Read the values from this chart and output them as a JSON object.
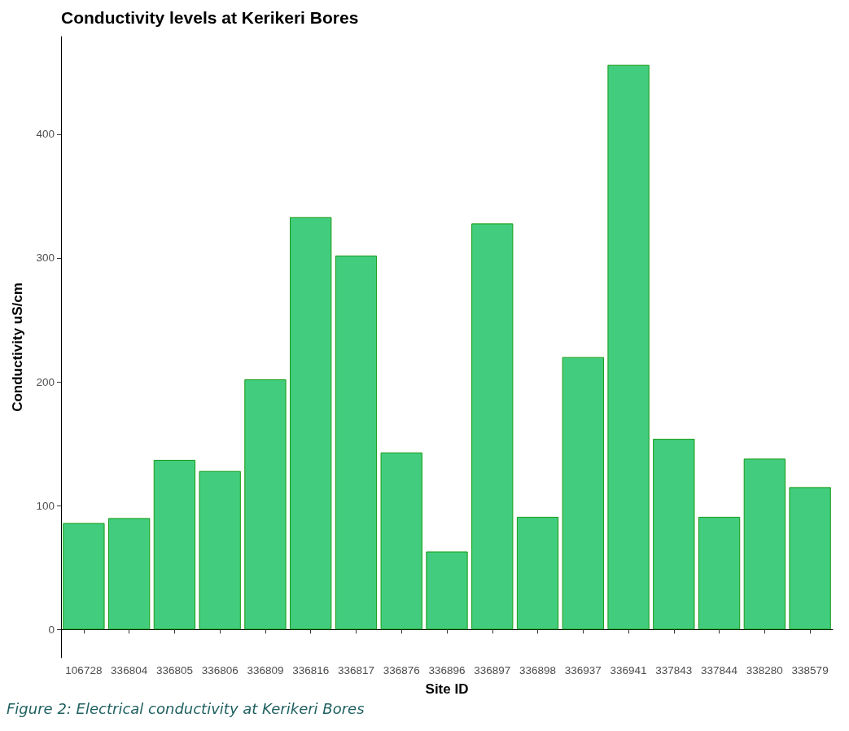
{
  "chart_data": {
    "type": "bar",
    "title": "Conductivity levels at Kerikeri Bores",
    "xlabel": "Site ID",
    "ylabel": "Conductivity uS/cm",
    "categories": [
      "106728",
      "336804",
      "336805",
      "336806",
      "336809",
      "336816",
      "336817",
      "336876",
      "336896",
      "336897",
      "336898",
      "336937",
      "336941",
      "337843",
      "337844",
      "338280",
      "338579"
    ],
    "values": [
      86,
      90,
      137,
      128,
      202,
      333,
      302,
      143,
      63,
      328,
      91,
      220,
      456,
      154,
      91,
      138,
      115
    ],
    "color": "#42cd7e",
    "ylim": [
      -22.8,
      478.8
    ],
    "yticks": [
      0,
      100,
      200,
      300,
      400
    ],
    "annotations": [
      "Figure 2: Electrical conductivity at Kerikeri Bores"
    ]
  }
}
